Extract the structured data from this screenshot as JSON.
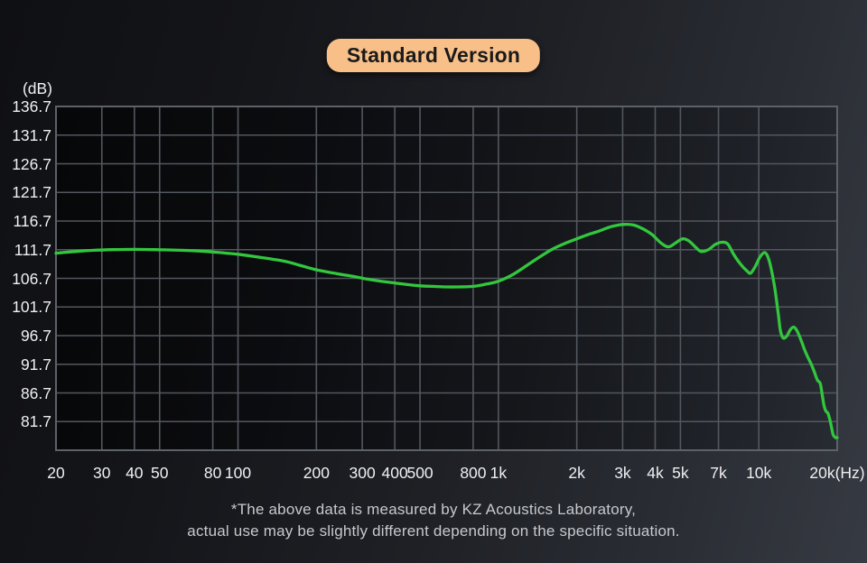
{
  "badge": {
    "label": "Standard Version"
  },
  "colors": {
    "badge_bg": "#f8c088",
    "badge_text": "#1a1a1c",
    "curve": "#32c73e",
    "grid": "#53575e",
    "plot_border": "#5d6168",
    "axis_text": "#eef0f2",
    "footnote_text": "#c6c9cd"
  },
  "y_axis": {
    "unit_label": "(dB)"
  },
  "footnote": {
    "line1": "*The above data is measured by KZ Acoustics Laboratory,",
    "line2": "actual use may be slightly different depending on the specific situation."
  },
  "chart_data": {
    "type": "line",
    "title": "Standard Version",
    "xlabel": "(Hz)",
    "ylabel": "(dB)",
    "x_scale": "log",
    "xlim": [
      20,
      20000
    ],
    "ylim": [
      76.7,
      136.7
    ],
    "grid": true,
    "legend": "none",
    "x_ticks": [
      {
        "f": 20,
        "label": "20"
      },
      {
        "f": 30,
        "label": "30"
      },
      {
        "f": 40,
        "label": "40"
      },
      {
        "f": 50,
        "label": "50"
      },
      {
        "f": 80,
        "label": "80"
      },
      {
        "f": 100,
        "label": "100"
      },
      {
        "f": 200,
        "label": "200"
      },
      {
        "f": 300,
        "label": "300"
      },
      {
        "f": 400,
        "label": "400"
      },
      {
        "f": 500,
        "label": "500"
      },
      {
        "f": 800,
        "label": "800"
      },
      {
        "f": 1000,
        "label": "1k"
      },
      {
        "f": 2000,
        "label": "2k"
      },
      {
        "f": 3000,
        "label": "3k"
      },
      {
        "f": 4000,
        "label": "4k"
      },
      {
        "f": 5000,
        "label": "5k"
      },
      {
        "f": 7000,
        "label": "7k"
      },
      {
        "f": 10000,
        "label": "10k"
      },
      {
        "f": 20000,
        "label": "20k(Hz)"
      }
    ],
    "y_ticks": [
      136.7,
      131.7,
      126.7,
      121.7,
      116.7,
      111.7,
      106.7,
      101.7,
      96.7,
      91.7,
      86.7,
      81.7
    ],
    "series": [
      {
        "name": "frequency_response_db_spl",
        "color": "#32c73e",
        "points": [
          [
            20,
            111.1
          ],
          [
            24,
            111.4
          ],
          [
            28,
            111.6
          ],
          [
            33,
            111.7
          ],
          [
            40,
            111.75
          ],
          [
            48,
            111.7
          ],
          [
            56,
            111.65
          ],
          [
            65,
            111.55
          ],
          [
            75,
            111.4
          ],
          [
            85,
            111.2
          ],
          [
            100,
            110.9
          ],
          [
            120,
            110.4
          ],
          [
            150,
            109.7
          ],
          [
            175,
            108.9
          ],
          [
            200,
            108.2
          ],
          [
            240,
            107.5
          ],
          [
            280,
            107.0
          ],
          [
            320,
            106.5
          ],
          [
            360,
            106.15
          ],
          [
            400,
            105.9
          ],
          [
            450,
            105.6
          ],
          [
            500,
            105.4
          ],
          [
            560,
            105.3
          ],
          [
            630,
            105.2
          ],
          [
            700,
            105.2
          ],
          [
            800,
            105.3
          ],
          [
            900,
            105.7
          ],
          [
            1000,
            106.2
          ],
          [
            1150,
            107.5
          ],
          [
            1350,
            109.6
          ],
          [
            1600,
            111.7
          ],
          [
            1800,
            112.8
          ],
          [
            2000,
            113.6
          ],
          [
            2200,
            114.3
          ],
          [
            2450,
            115.0
          ],
          [
            2700,
            115.7
          ],
          [
            3000,
            116.1
          ],
          [
            3300,
            116.0
          ],
          [
            3600,
            115.3
          ],
          [
            3900,
            114.3
          ],
          [
            4200,
            112.9
          ],
          [
            4500,
            112.2
          ],
          [
            4800,
            112.9
          ],
          [
            5100,
            113.6
          ],
          [
            5400,
            113.2
          ],
          [
            5700,
            112.2
          ],
          [
            6000,
            111.4
          ],
          [
            6400,
            111.7
          ],
          [
            6800,
            112.6
          ],
          [
            7200,
            113.0
          ],
          [
            7600,
            112.7
          ],
          [
            8000,
            110.9
          ],
          [
            8500,
            109.2
          ],
          [
            9000,
            108.0
          ],
          [
            9300,
            107.6
          ],
          [
            9700,
            108.8
          ],
          [
            10100,
            110.4
          ],
          [
            10500,
            111.2
          ],
          [
            10800,
            110.6
          ],
          [
            11100,
            108.8
          ],
          [
            11500,
            105.2
          ],
          [
            11900,
            100.2
          ],
          [
            12100,
            97.6
          ],
          [
            12400,
            96.3
          ],
          [
            12800,
            96.6
          ],
          [
            13200,
            97.7
          ],
          [
            13600,
            98.2
          ],
          [
            14000,
            97.6
          ],
          [
            14500,
            96.0
          ],
          [
            15000,
            94.2
          ],
          [
            15400,
            93.0
          ],
          [
            15900,
            91.7
          ],
          [
            16300,
            90.5
          ],
          [
            16800,
            88.9
          ],
          [
            17200,
            88.4
          ],
          [
            17500,
            86.5
          ],
          [
            17800,
            84.5
          ],
          [
            18100,
            83.5
          ],
          [
            18400,
            83.2
          ],
          [
            18700,
            82.2
          ],
          [
            19000,
            80.8
          ],
          [
            19300,
            79.4
          ],
          [
            19700,
            78.9
          ],
          [
            20000,
            78.9
          ]
        ]
      }
    ]
  }
}
